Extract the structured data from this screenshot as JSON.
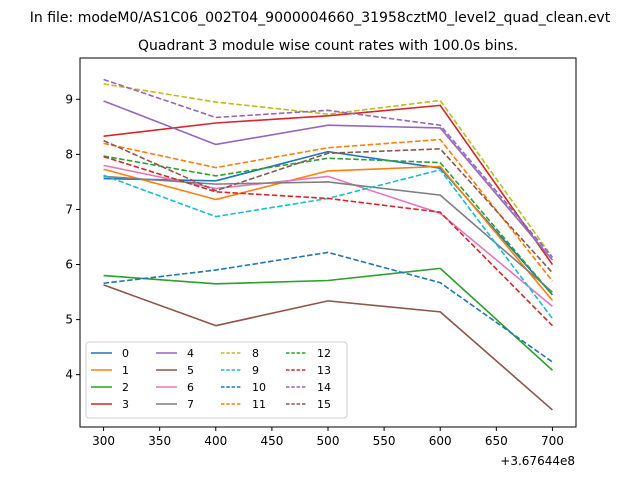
{
  "chart_data": {
    "type": "line",
    "suptitle": "In file: modeM0/AS1C06_002T04_9000004660_31958cztM0_level2_quad_clean.evt",
    "title": "Quadrant 3 module wise count rates with 100.0s bins.",
    "x": [
      300,
      400,
      500,
      600,
      700
    ],
    "x_offset_label": "+3.67644e8",
    "xlim": [
      279,
      721
    ],
    "ylim": [
      3.05,
      9.75
    ],
    "xticks": [
      300,
      350,
      400,
      450,
      500,
      550,
      600,
      650,
      700
    ],
    "yticks": [
      4,
      5,
      6,
      7,
      8,
      9
    ],
    "legend_location": "lower-left",
    "legend_columns": 4,
    "series": [
      {
        "name": "0",
        "color": "#1f77b4",
        "dash": "solid",
        "values": [
          7.56,
          7.52,
          8.05,
          7.75,
          5.45
        ]
      },
      {
        "name": "1",
        "color": "#ff7f0e",
        "dash": "solid",
        "values": [
          7.73,
          7.18,
          7.7,
          7.78,
          5.35
        ]
      },
      {
        "name": "2",
        "color": "#2ca02c",
        "dash": "solid",
        "values": [
          5.8,
          5.65,
          5.71,
          5.93,
          4.08
        ]
      },
      {
        "name": "3",
        "color": "#d62728",
        "dash": "solid",
        "values": [
          8.33,
          8.57,
          8.7,
          8.89,
          6.0
        ]
      },
      {
        "name": "4",
        "color": "#9467bd",
        "dash": "solid",
        "values": [
          8.97,
          8.18,
          8.53,
          8.48,
          6.08
        ]
      },
      {
        "name": "5",
        "color": "#8c564b",
        "dash": "solid",
        "values": [
          5.63,
          4.89,
          5.34,
          5.14,
          3.36
        ]
      },
      {
        "name": "6",
        "color": "#e377c2",
        "dash": "solid",
        "values": [
          7.8,
          7.38,
          7.6,
          6.93,
          5.24
        ]
      },
      {
        "name": "7",
        "color": "#7f7f7f",
        "dash": "solid",
        "values": [
          7.6,
          7.46,
          7.5,
          7.26,
          5.5
        ]
      },
      {
        "name": "8",
        "color": "#bcbd22",
        "dash": "dashed",
        "values": [
          9.28,
          8.95,
          8.73,
          8.98,
          6.13
        ]
      },
      {
        "name": "9",
        "color": "#17becf",
        "dash": "dashed",
        "values": [
          7.62,
          6.87,
          7.2,
          7.72,
          5.02
        ]
      },
      {
        "name": "10",
        "color": "#1f77b4",
        "dash": "dashed",
        "values": [
          5.66,
          5.9,
          6.22,
          5.67,
          4.23
        ]
      },
      {
        "name": "11",
        "color": "#ff7f0e",
        "dash": "dashed",
        "values": [
          8.2,
          7.76,
          8.12,
          8.27,
          5.7
        ]
      },
      {
        "name": "12",
        "color": "#2ca02c",
        "dash": "dashed",
        "values": [
          7.97,
          7.61,
          7.93,
          7.85,
          5.45
        ]
      },
      {
        "name": "13",
        "color": "#d62728",
        "dash": "dashed",
        "values": [
          7.96,
          7.32,
          7.2,
          6.95,
          4.89
        ]
      },
      {
        "name": "14",
        "color": "#9467bd",
        "dash": "dashed",
        "values": [
          9.36,
          8.67,
          8.8,
          8.53,
          6.13
        ]
      },
      {
        "name": "15",
        "color": "#8c564b",
        "dash": "dashed",
        "values": [
          8.25,
          7.34,
          8.02,
          8.1,
          5.85
        ]
      }
    ]
  }
}
